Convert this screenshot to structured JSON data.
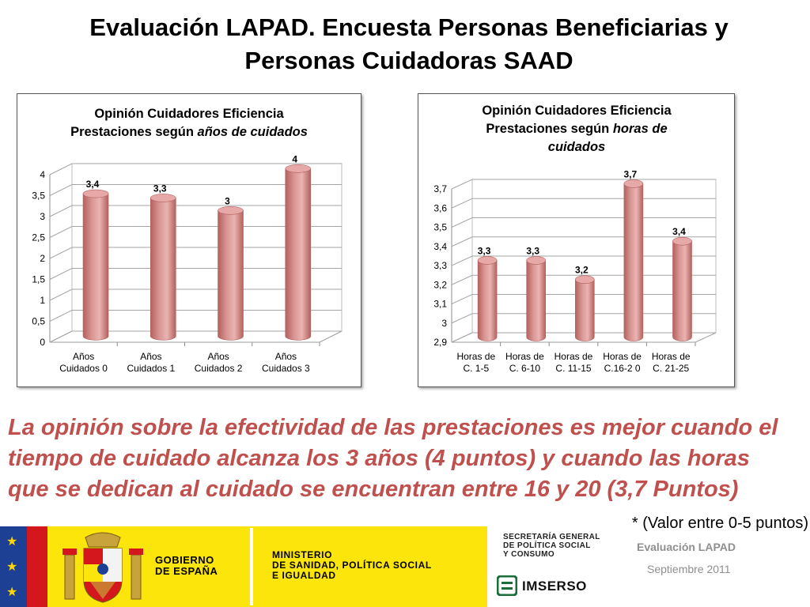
{
  "slide": {
    "title_line1": "Evaluación  LAPAD.  Encuesta Personas Beneficiarias y",
    "title_line2": "Personas  Cuidadoras SAAD",
    "conclusion_line1": "La opinión sobre la efectividad de las prestaciones es mejor cuando el",
    "conclusion_line2": "tiempo de cuidado alcanza los 3 años (4 puntos) y cuando las horas",
    "conclusion_line3": "que se dedican al cuidado se encuentran entre 16 y 20 (3,7 Puntos)",
    "footnote": "* (Valor entre 0-5 puntos)"
  },
  "footer": {
    "gobierno_line1": "GOBIERNO",
    "gobierno_line2": "DE ESPAÑA",
    "ministerio_line1": "MINISTERIO",
    "ministerio_line2": "DE SANIDAD, POLÍTICA SOCIAL",
    "ministerio_line3": "E IGUALDAD",
    "secretaria_line1": "SECRETARÍA GENERAL",
    "secretaria_line2": "DE POLÍTICA SOCIAL",
    "secretaria_line3": "Y CONSUMO",
    "imserso": "IMSERSO",
    "evaluacion": "Evaluación LAPAD",
    "fecha": "Septiembre 2011",
    "colors": {
      "band": "#fce50a",
      "eu_blue": "#1d3f94",
      "spain_red": "#d4161d"
    }
  },
  "colors": {
    "bar": "#d99694",
    "bar_dark": "#b3615e",
    "accent_text": "#c0504d"
  },
  "chart_data": [
    {
      "type": "bar",
      "title_part1": "Opinión Cuidadores Eficiencia",
      "title_part2": "Prestaciones según ",
      "title_italic": "años de cuidados",
      "categories": [
        [
          "Años",
          "Cuidados 0"
        ],
        [
          "Años",
          "Cuidados 1"
        ],
        [
          "Años",
          "Cuidados 2"
        ],
        [
          "Años",
          "Cuidados 3"
        ]
      ],
      "values": [
        3.4,
        3.3,
        3,
        4
      ],
      "data_labels": [
        "3,4",
        "3,3",
        "3",
        "4"
      ],
      "ylim": [
        0,
        4
      ],
      "yticks": [
        "0",
        "0,5",
        "1",
        "1,5",
        "2",
        "2,5",
        "3",
        "3,5",
        "4"
      ],
      "grid": true,
      "legend": "none"
    },
    {
      "type": "bar",
      "title_part1": "Opinión Cuidadores Eficiencia",
      "title_part2": "Prestaciones según ",
      "title_italic": "horas  de cuidados",
      "categories": [
        [
          "Horas de",
          "C. 1-5"
        ],
        [
          "Horas de",
          "C. 6-10"
        ],
        [
          "Horas de",
          "C. 11-15"
        ],
        [
          "Horas de",
          "C.16-2 0"
        ],
        [
          "Horas de",
          "C. 21-25"
        ]
      ],
      "values": [
        3.3,
        3.3,
        3.2,
        3.7,
        3.4
      ],
      "data_labels": [
        "3,3",
        "3,3",
        "3,2",
        "3,7",
        "3,4"
      ],
      "ylim": [
        2.9,
        3.7
      ],
      "yticks": [
        "2,9",
        "3",
        "3,1",
        "3,2",
        "3,3",
        "3,4",
        "3,5",
        "3,6",
        "3,7"
      ],
      "grid": true,
      "legend": "none"
    }
  ]
}
